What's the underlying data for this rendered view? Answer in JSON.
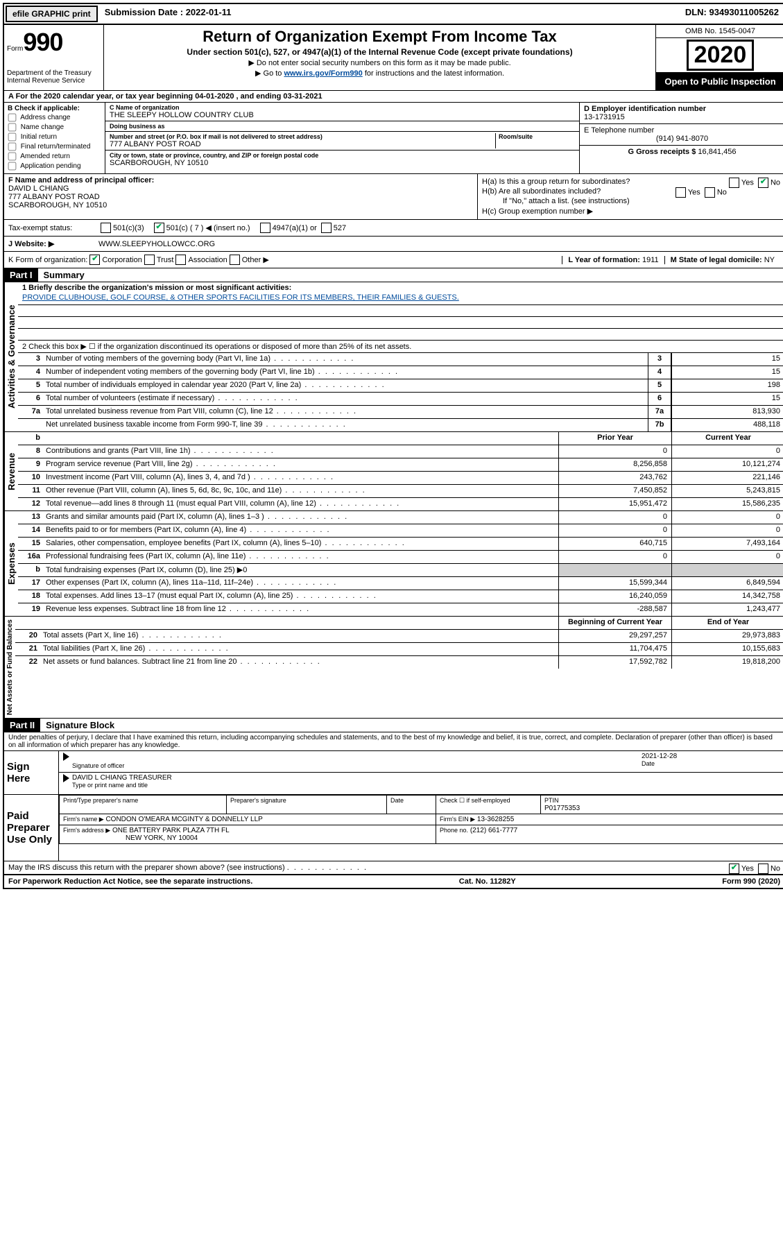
{
  "top": {
    "efile": "efile GRAPHIC print",
    "submission_label": "Submission Date : 2022-01-11",
    "dln": "DLN: 93493011005262"
  },
  "header": {
    "form_word": "Form",
    "form_num": "990",
    "dept": "Department of the Treasury\nInternal Revenue Service",
    "title": "Return of Organization Exempt From Income Tax",
    "sub": "Under section 501(c), 527, or 4947(a)(1) of the Internal Revenue Code (except private foundations)",
    "note1": "▶ Do not enter social security numbers on this form as it may be made public.",
    "note2_pre": "▶ Go to ",
    "note2_link": "www.irs.gov/Form990",
    "note2_post": " for instructions and the latest information.",
    "omb": "OMB No. 1545-0047",
    "year": "2020",
    "inspection": "Open to Public Inspection"
  },
  "row_a": "A For the 2020 calendar year, or tax year beginning 04-01-2020   , and ending 03-31-2021",
  "block_b": {
    "title": "B Check if applicable:",
    "opts": [
      "Address change",
      "Name change",
      "Initial return",
      "Final return/terminated",
      "Amended return",
      "Application pending"
    ]
  },
  "block_c": {
    "name_lbl": "C Name of organization",
    "name": "THE SLEEPY HOLLOW COUNTRY CLUB",
    "dba_lbl": "Doing business as",
    "dba": "",
    "addr_lbl": "Number and street (or P.O. box if mail is not delivered to street address)",
    "room_lbl": "Room/suite",
    "addr": "777 ALBANY POST ROAD",
    "city_lbl": "City or town, state or province, country, and ZIP or foreign postal code",
    "city": "SCARBOROUGH, NY  10510"
  },
  "block_d": {
    "lbl": "D Employer identification number",
    "val": "13-1731915"
  },
  "block_e": {
    "lbl": "E Telephone number",
    "val": "(914) 941-8070"
  },
  "block_g": {
    "lbl": "G Gross receipts $",
    "val": "16,841,456"
  },
  "block_f": {
    "lbl": "F  Name and address of principal officer:",
    "name": "DAVID L CHIANG",
    "addr1": "777 ALBANY POST ROAD",
    "addr2": "SCARBOROUGH, NY  10510"
  },
  "block_h": {
    "ha": "H(a)  Is this a group return for subordinates?",
    "hb": "H(b)  Are all subordinates included?",
    "hb_note": "If \"No,\" attach a list. (see instructions)",
    "hc": "H(c)  Group exemption number ▶"
  },
  "status": {
    "lbl": "Tax-exempt status:",
    "o1": "501(c)(3)",
    "o2": "501(c) ( 7 ) ◀ (insert no.)",
    "o3": "4947(a)(1) or",
    "o4": "527"
  },
  "block_j": {
    "lbl": "J     Website: ▶",
    "val": "WWW.SLEEPYHOLLOWCC.ORG"
  },
  "block_k": {
    "lbl": "K Form of organization:",
    "opts": [
      "Corporation",
      "Trust",
      "Association",
      "Other ▶"
    ],
    "l_lbl": "L Year of formation:",
    "l_val": "1911",
    "m_lbl": "M State of legal domicile:",
    "m_val": "NY"
  },
  "part1": {
    "title": "Part I",
    "name": "Summary",
    "q1": "1  Briefly describe the organization's mission or most significant activities:",
    "mission": "PROVIDE CLUBHOUSE, GOLF COURSE, & OTHER SPORTS FACILITIES FOR ITS MEMBERS, THEIR FAMILIES & GUESTS.",
    "q2": "2   Check this box ▶ ☐  if the organization discontinued its operations or disposed of more than 25% of its net assets.",
    "rows_gov": [
      {
        "n": "3",
        "t": "Number of voting members of the governing body (Part VI, line 1a)",
        "idx": "3",
        "v": "15"
      },
      {
        "n": "4",
        "t": "Number of independent voting members of the governing body (Part VI, line 1b)",
        "idx": "4",
        "v": "15"
      },
      {
        "n": "5",
        "t": "Total number of individuals employed in calendar year 2020 (Part V, line 2a)",
        "idx": "5",
        "v": "198"
      },
      {
        "n": "6",
        "t": "Total number of volunteers (estimate if necessary)",
        "idx": "6",
        "v": "15"
      },
      {
        "n": "7a",
        "t": "Total unrelated business revenue from Part VIII, column (C), line 12",
        "idx": "7a",
        "v": "813,930"
      },
      {
        "n": "",
        "t": "Net unrelated business taxable income from Form 990-T, line 39",
        "idx": "7b",
        "v": "488,118"
      }
    ],
    "col_prior": "Prior Year",
    "col_current": "Current Year",
    "rows_rev": [
      {
        "n": "8",
        "t": "Contributions and grants (Part VIII, line 1h)",
        "p": "0",
        "c": "0"
      },
      {
        "n": "9",
        "t": "Program service revenue (Part VIII, line 2g)",
        "p": "8,256,858",
        "c": "10,121,274"
      },
      {
        "n": "10",
        "t": "Investment income (Part VIII, column (A), lines 3, 4, and 7d )",
        "p": "243,762",
        "c": "221,146"
      },
      {
        "n": "11",
        "t": "Other revenue (Part VIII, column (A), lines 5, 6d, 8c, 9c, 10c, and 11e)",
        "p": "7,450,852",
        "c": "5,243,815"
      },
      {
        "n": "12",
        "t": "Total revenue—add lines 8 through 11 (must equal Part VIII, column (A), line 12)",
        "p": "15,951,472",
        "c": "15,586,235"
      }
    ],
    "rows_exp": [
      {
        "n": "13",
        "t": "Grants and similar amounts paid (Part IX, column (A), lines 1–3 )",
        "p": "0",
        "c": "0"
      },
      {
        "n": "14",
        "t": "Benefits paid to or for members (Part IX, column (A), line 4)",
        "p": "0",
        "c": "0"
      },
      {
        "n": "15",
        "t": "Salaries, other compensation, employee benefits (Part IX, column (A), lines 5–10)",
        "p": "640,715",
        "c": "7,493,164"
      },
      {
        "n": "16a",
        "t": "Professional fundraising fees (Part IX, column (A), line 11e)",
        "p": "0",
        "c": "0"
      },
      {
        "n": "b",
        "t": "Total fundraising expenses (Part IX, column (D), line 25) ▶0",
        "p": "",
        "c": "",
        "grey": true
      },
      {
        "n": "17",
        "t": "Other expenses (Part IX, column (A), lines 11a–11d, 11f–24e)",
        "p": "15,599,344",
        "c": "6,849,594"
      },
      {
        "n": "18",
        "t": "Total expenses. Add lines 13–17 (must equal Part IX, column (A), line 25)",
        "p": "16,240,059",
        "c": "14,342,758"
      },
      {
        "n": "19",
        "t": "Revenue less expenses. Subtract line 18 from line 12",
        "p": "-288,587",
        "c": "1,243,477"
      }
    ],
    "col_begin": "Beginning of Current Year",
    "col_end": "End of Year",
    "rows_net": [
      {
        "n": "20",
        "t": "Total assets (Part X, line 16)",
        "p": "29,297,257",
        "c": "29,973,883"
      },
      {
        "n": "21",
        "t": "Total liabilities (Part X, line 26)",
        "p": "11,704,475",
        "c": "10,155,683"
      },
      {
        "n": "22",
        "t": "Net assets or fund balances. Subtract line 21 from line 20",
        "p": "17,592,782",
        "c": "19,818,200"
      }
    ],
    "vlabels": {
      "gov": "Activities & Governance",
      "rev": "Revenue",
      "exp": "Expenses",
      "net": "Net Assets or Fund Balances"
    }
  },
  "part2": {
    "title": "Part II",
    "name": "Signature Block",
    "perjury": "Under penalties of perjury, I declare that I have examined this return, including accompanying schedules and statements, and to the best of my knowledge and belief, it is true, correct, and complete. Declaration of preparer (other than officer) is based on all information of which preparer has any knowledge.",
    "sign_here": "Sign Here",
    "sig_officer": "Signature of officer",
    "date_lbl": "Date",
    "date_val": "2021-12-28",
    "typed": "DAVID L CHIANG  TREASURER",
    "typed_lbl": "Type or print name and title",
    "paid": "Paid Preparer Use Only",
    "prep_name_lbl": "Print/Type preparer's name",
    "prep_sig_lbl": "Preparer's signature",
    "check_self": "Check ☐ if self-employed",
    "ptin_lbl": "PTIN",
    "ptin": "P01775353",
    "firm_name_lbl": "Firm's name    ▶",
    "firm_name": "CONDON O'MEARA MCGINTY & DONNELLY LLP",
    "firm_ein_lbl": "Firm's EIN ▶",
    "firm_ein": "13-3628255",
    "firm_addr_lbl": "Firm's address ▶",
    "firm_addr1": "ONE BATTERY PARK PLAZA 7TH FL",
    "firm_addr2": "NEW YORK, NY  10004",
    "phone_lbl": "Phone no.",
    "phone": "(212) 661-7777",
    "discuss": "May the IRS discuss this return with the preparer shown above? (see instructions)"
  },
  "footer": {
    "left": "For Paperwork Reduction Act Notice, see the separate instructions.",
    "mid": "Cat. No. 11282Y",
    "right": "Form 990 (2020)"
  }
}
